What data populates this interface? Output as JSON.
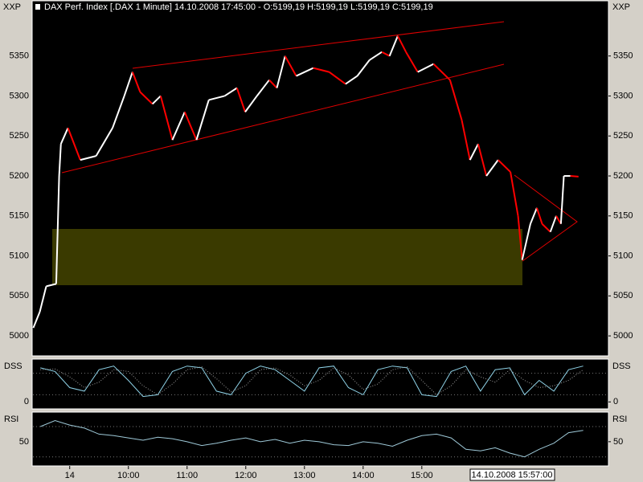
{
  "chart_data": [
    {
      "type": "candle-line",
      "title": "DAX Perf. Index [.DAX  1 Minute] 14.10.2008 17:45:00 - O:5199,19 H:5199,19 L:5199,19 C:5199,19",
      "y_label": "XXP",
      "x": [
        8.38,
        8.49,
        8.6,
        8.77,
        8.82,
        8.85,
        8.97,
        9.18,
        9.45,
        9.73,
        9.93,
        10.07,
        10.2,
        10.41,
        10.55,
        10.75,
        10.96,
        11.16,
        11.37,
        11.64,
        11.85,
        11.99,
        12.19,
        12.4,
        12.53,
        12.67,
        12.86,
        13.15,
        13.42,
        13.7,
        13.9,
        14.11,
        14.32,
        14.45,
        14.59,
        14.73,
        14.93,
        15.2,
        15.48,
        15.68,
        15.82,
        15.96,
        16.1,
        16.3,
        16.51,
        16.64,
        16.71,
        16.85,
        16.96,
        17.05,
        17.19,
        17.29,
        17.37,
        17.42,
        17.53,
        17.67
      ],
      "values": [
        5010,
        5030,
        5062,
        5065,
        5200,
        5240,
        5260,
        5220,
        5225,
        5260,
        5300,
        5330,
        5305,
        5290,
        5300,
        5245,
        5280,
        5245,
        5295,
        5300,
        5310,
        5280,
        5300,
        5320,
        5310,
        5350,
        5325,
        5335,
        5330,
        5315,
        5325,
        5345,
        5355,
        5350,
        5375,
        5355,
        5330,
        5340,
        5320,
        5270,
        5220,
        5240,
        5200,
        5220,
        5205,
        5150,
        5095,
        5140,
        5160,
        5140,
        5130,
        5150,
        5140,
        5200,
        5200,
        5199.19
      ],
      "up_color": "#ffffff",
      "down_color": "#ff0000",
      "xlim": [
        8.36,
        18.18
      ],
      "ylim": [
        4975,
        5418
      ],
      "yticks": [
        5000,
        5050,
        5100,
        5150,
        5200,
        5250,
        5300,
        5350
      ]
    },
    {
      "type": "line",
      "y_label": "DSS",
      "x": [
        8.5,
        8.75,
        9,
        9.25,
        9.5,
        9.75,
        10,
        10.25,
        10.5,
        10.75,
        11,
        11.25,
        11.5,
        11.75,
        12,
        12.25,
        12.5,
        12.75,
        13,
        13.25,
        13.5,
        13.75,
        14,
        14.25,
        14.5,
        14.75,
        15,
        15.25,
        15.5,
        15.75,
        16,
        16.25,
        16.5,
        16.75,
        17,
        17.25,
        17.5,
        17.75
      ],
      "series": [
        {
          "color": "#8fd3e8",
          "values": [
            95,
            85,
            40,
            30,
            90,
            100,
            60,
            15,
            20,
            85,
            100,
            95,
            30,
            20,
            80,
            100,
            90,
            60,
            30,
            95,
            100,
            40,
            20,
            90,
            100,
            95,
            20,
            15,
            85,
            100,
            30,
            90,
            95,
            20,
            60,
            30,
            90,
            100
          ]
        },
        {
          "color": "#9a9a9a",
          "dash": "dotted",
          "values": [
            90,
            92,
            70,
            40,
            55,
            90,
            85,
            45,
            20,
            50,
            90,
            98,
            65,
            28,
            45,
            90,
            95,
            75,
            45,
            60,
            95,
            75,
            35,
            50,
            90,
            98,
            60,
            20,
            45,
            90,
            70,
            55,
            90,
            60,
            40,
            45,
            60,
            90
          ]
        }
      ],
      "levels": [
        20,
        80
      ],
      "xlim": [
        8.36,
        18.18
      ],
      "ylim": [
        -15,
        115
      ],
      "yticks": [
        0
      ]
    },
    {
      "type": "line",
      "y_label": "RSI",
      "x": [
        8.5,
        8.75,
        9,
        9.25,
        9.5,
        9.75,
        10,
        10.25,
        10.5,
        10.75,
        11,
        11.25,
        11.5,
        11.75,
        12,
        12.25,
        12.5,
        12.75,
        13,
        13.25,
        13.5,
        13.75,
        14,
        14.25,
        14.5,
        14.75,
        15,
        15.25,
        15.5,
        15.75,
        16,
        16.25,
        16.5,
        16.75,
        17,
        17.25,
        17.5,
        17.75
      ],
      "series": [
        {
          "color": "#9ec9d8",
          "values": [
            70,
            78,
            72,
            68,
            60,
            58,
            55,
            52,
            56,
            54,
            50,
            45,
            48,
            52,
            55,
            50,
            53,
            48,
            52,
            50,
            46,
            45,
            50,
            48,
            44,
            52,
            58,
            60,
            55,
            40,
            38,
            42,
            35,
            30,
            40,
            48,
            62,
            65
          ]
        }
      ],
      "levels": [
        30,
        70
      ],
      "xlim": [
        8.36,
        18.18
      ],
      "ylim": [
        18,
        87
      ],
      "yticks": [
        50
      ],
      "xticks": [
        {
          "value": 9,
          "label": "14"
        },
        {
          "value": 10,
          "label": "10:00"
        },
        {
          "value": 11,
          "label": "11:00"
        },
        {
          "value": 12,
          "label": "12:00"
        },
        {
          "value": 13,
          "label": "13:00"
        },
        {
          "value": 14,
          "label": "14:00"
        },
        {
          "value": 15,
          "label": "15:00"
        }
      ],
      "cursor_label": "14.10.2008 15:57:00"
    }
  ]
}
